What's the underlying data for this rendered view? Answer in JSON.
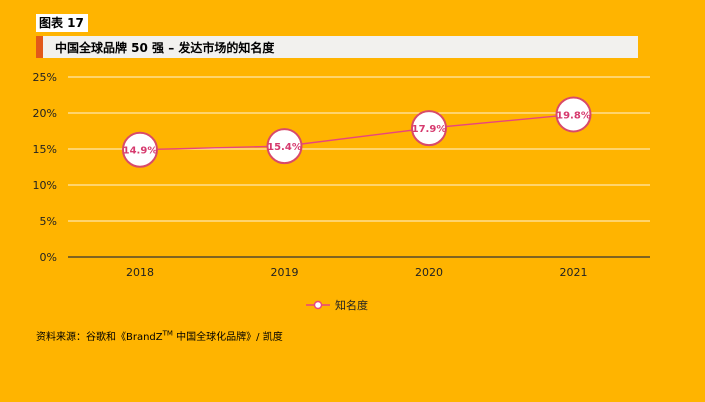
{
  "figure_label": "图表 17",
  "chart_title": "中国全球品牌 50 强 – 发达市场的知名度",
  "source": {
    "prefix": "资料来源：谷歌和《BrandZ",
    "tm": "TM",
    "suffix": " 中国全球化品牌》/ 凯度"
  },
  "colors": {
    "background": "#FFB400",
    "line": "#E8457E",
    "marker_border": "#D84A6A",
    "label_text": "#D63A6E",
    "axis": "#333333",
    "grid": "#ffffff",
    "title_bar": "#F2F1EE",
    "title_accent": "#E2591A"
  },
  "chart_data": {
    "type": "line",
    "title": "中国全球品牌 50 强 – 发达市场的知名度",
    "categories": [
      "2018",
      "2019",
      "2020",
      "2021"
    ],
    "series": [
      {
        "name": "知名度",
        "values": [
          14.9,
          15.4,
          17.9,
          19.8
        ],
        "labels": [
          "14.9%",
          "15.4%",
          "17.9%",
          "19.8%"
        ]
      }
    ],
    "yticks": [
      "0%",
      "5%",
      "10%",
      "15%",
      "20%",
      "25%"
    ],
    "ylim": [
      0,
      25
    ],
    "y_unit": "percent",
    "grid": true,
    "legend_position": "bottom"
  }
}
